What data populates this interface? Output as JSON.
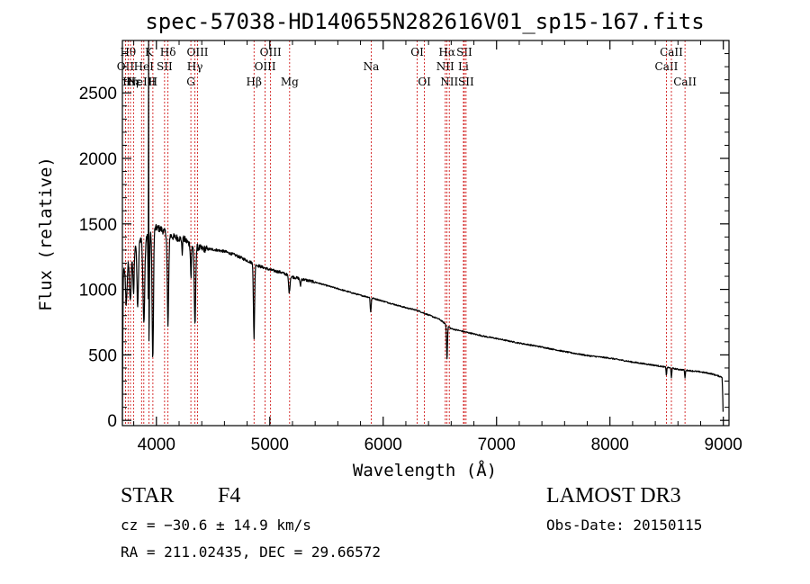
{
  "chart_data": {
    "type": "line",
    "title": "spec-57038-HD140655N282616V01_sp15-167.fits",
    "xlabel": "Wavelength (Å)",
    "ylabel": "Flux (relative)",
    "xlim": [
      3700,
      9050
    ],
    "ylim": [
      -40,
      2900
    ],
    "xticks": [
      4000,
      5000,
      6000,
      7000,
      8000,
      9000
    ],
    "yticks": [
      0,
      500,
      1000,
      1500,
      2000,
      2500
    ],
    "continuum": [
      [
        3700,
        0
      ],
      [
        3705,
        900
      ],
      [
        3710,
        1150
      ],
      [
        3730,
        1230
      ],
      [
        3760,
        1280
      ],
      [
        3790,
        1340
      ],
      [
        3820,
        1360
      ],
      [
        3850,
        1380
      ],
      [
        3880,
        1400
      ],
      [
        3900,
        1410
      ],
      [
        3920,
        1420
      ],
      [
        3950,
        1440
      ],
      [
        4000,
        1470
      ],
      [
        4040,
        1460
      ],
      [
        4100,
        1420
      ],
      [
        4150,
        1400
      ],
      [
        4200,
        1390
      ],
      [
        4250,
        1380
      ],
      [
        4300,
        1340
      ],
      [
        4350,
        1325
      ],
      [
        4400,
        1310
      ],
      [
        4500,
        1305
      ],
      [
        4600,
        1290
      ],
      [
        4700,
        1260
      ],
      [
        4800,
        1220
      ],
      [
        4900,
        1180
      ],
      [
        5000,
        1150
      ],
      [
        5100,
        1130
      ],
      [
        5200,
        1095
      ],
      [
        5300,
        1075
      ],
      [
        5400,
        1055
      ],
      [
        5500,
        1030
      ],
      [
        5600,
        1005
      ],
      [
        5700,
        980
      ],
      [
        5800,
        955
      ],
      [
        5900,
        935
      ],
      [
        6000,
        910
      ],
      [
        6100,
        885
      ],
      [
        6200,
        860
      ],
      [
        6300,
        840
      ],
      [
        6400,
        805
      ],
      [
        6500,
        770
      ],
      [
        6600,
        700
      ],
      [
        6700,
        680
      ],
      [
        6800,
        660
      ],
      [
        6900,
        640
      ],
      [
        7000,
        625
      ],
      [
        7200,
        590
      ],
      [
        7400,
        560
      ],
      [
        7600,
        525
      ],
      [
        7800,
        495
      ],
      [
        8000,
        475
      ],
      [
        8200,
        445
      ],
      [
        8400,
        420
      ],
      [
        8500,
        405
      ],
      [
        8600,
        390
      ],
      [
        8700,
        380
      ],
      [
        8800,
        370
      ],
      [
        8900,
        355
      ],
      [
        8990,
        330
      ],
      [
        9000,
        0
      ]
    ],
    "absorption_features": [
      {
        "center": 3735,
        "width": 8,
        "depth": 350
      },
      {
        "center": 3770,
        "width": 8,
        "depth": 400
      },
      {
        "center": 3798,
        "width": 6,
        "depth": 380
      },
      {
        "center": 3835,
        "width": 7,
        "depth": 500
      },
      {
        "center": 3889,
        "width": 8,
        "depth": 650
      },
      {
        "center": 3933,
        "width": 5,
        "depth": 850
      },
      {
        "center": 3968,
        "width": 6,
        "depth": 1000
      },
      {
        "center": 4102,
        "width": 6,
        "depth": 700
      },
      {
        "center": 4227,
        "width": 3,
        "depth": 120
      },
      {
        "center": 4305,
        "width": 4,
        "depth": 250
      },
      {
        "center": 4340,
        "width": 6,
        "depth": 600
      },
      {
        "center": 4861,
        "width": 5,
        "depth": 580
      },
      {
        "center": 5172,
        "width": 6,
        "depth": 130
      },
      {
        "center": 5270,
        "width": 4,
        "depth": 60
      },
      {
        "center": 5890,
        "width": 4,
        "depth": 110
      },
      {
        "center": 6563,
        "width": 4,
        "depth": 260
      },
      {
        "center": 8498,
        "width": 3,
        "depth": 60
      },
      {
        "center": 8542,
        "width": 3,
        "depth": 70
      },
      {
        "center": 8662,
        "width": 3,
        "depth": 60
      }
    ],
    "spike": {
      "wavelength": 3932,
      "flux": 2900
    },
    "line_markers": [
      {
        "wavelength": 3727,
        "label": "OII",
        "row": 2
      },
      {
        "wavelength": 3750,
        "label": "Hθ",
        "row": 1
      },
      {
        "wavelength": 3771,
        "label": "Hη",
        "row": 3
      },
      {
        "wavelength": 3798,
        "label": "Hε",
        "row": 3
      },
      {
        "wavelength": 3869,
        "label": "NeIII",
        "row": 3
      },
      {
        "wavelength": 3889,
        "label": "HeI",
        "row": 2
      },
      {
        "wavelength": 3934,
        "label": "K",
        "row": 1
      },
      {
        "wavelength": 3969,
        "label": "H",
        "row": 3
      },
      {
        "wavelength": 4072,
        "label": "SII",
        "row": 2
      },
      {
        "wavelength": 4102,
        "label": "Hδ",
        "row": 1
      },
      {
        "wavelength": 4304,
        "label": "G",
        "row": 3
      },
      {
        "wavelength": 4340,
        "label": "Hγ",
        "row": 2
      },
      {
        "wavelength": 4363,
        "label": "OIII",
        "row": 1
      },
      {
        "wavelength": 4861,
        "label": "Hβ",
        "row": 3
      },
      {
        "wavelength": 4959,
        "label": "OIII",
        "row": 2
      },
      {
        "wavelength": 5007,
        "label": "OIII",
        "row": 1
      },
      {
        "wavelength": 5175,
        "label": "Mg",
        "row": 3
      },
      {
        "wavelength": 5894,
        "label": "Na",
        "row": 2
      },
      {
        "wavelength": 6300,
        "label": "OI",
        "row": 1
      },
      {
        "wavelength": 6364,
        "label": "OI",
        "row": 3
      },
      {
        "wavelength": 6548,
        "label": "NII",
        "row": 2
      },
      {
        "wavelength": 6563,
        "label": "Hα",
        "row": 1
      },
      {
        "wavelength": 6583,
        "label": "NII",
        "row": 3
      },
      {
        "wavelength": 6708,
        "label": "Li",
        "row": 2
      },
      {
        "wavelength": 6716,
        "label": "SII",
        "row": 1
      },
      {
        "wavelength": 6731,
        "label": "SII",
        "row": 3
      },
      {
        "wavelength": 8498,
        "label": "CaII",
        "row": 2
      },
      {
        "wavelength": 8542,
        "label": "CaII",
        "row": 1
      },
      {
        "wavelength": 8662,
        "label": "CaII",
        "row": 3
      }
    ]
  },
  "info": {
    "class_text": "STAR",
    "subclass_text": "F4",
    "survey": "LAMOST DR3",
    "redshift_text": "cz = −30.6 ± 14.9 km/s",
    "obs_date": "Obs-Date: 20150115",
    "coords": "RA = 211.02435, DEC =  29.66572"
  },
  "colors": {
    "spectrum": "#000000",
    "marker": "#cc0000",
    "axis": "#000000"
  }
}
